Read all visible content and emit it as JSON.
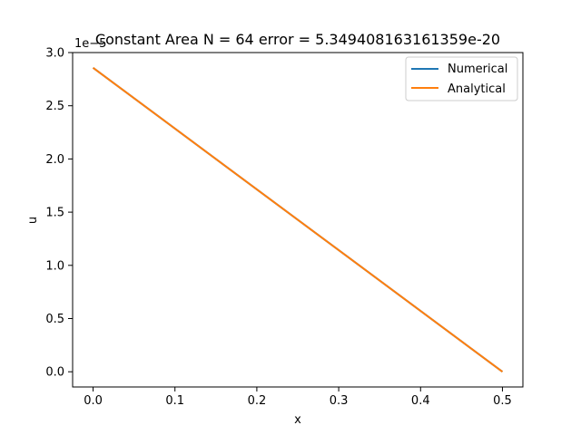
{
  "chart_data": {
    "type": "line",
    "title": "Constant Area N = 64 error = 5.349408163161359e-20",
    "xlabel": "x",
    "ylabel": "u",
    "y_offset_label": "1e−5",
    "xlim": [
      -0.025,
      0.525
    ],
    "ylim": [
      -0.143,
      3.0
    ],
    "x_ticks": [
      0.0,
      0.1,
      0.2,
      0.3,
      0.4,
      0.5
    ],
    "x_tick_labels": [
      "0.0",
      "0.1",
      "0.2",
      "0.3",
      "0.4",
      "0.5"
    ],
    "y_ticks": [
      0.0,
      0.5,
      1.0,
      1.5,
      2.0,
      2.5,
      3.0
    ],
    "y_tick_labels": [
      "0.0",
      "0.5",
      "1.0",
      "1.5",
      "2.0",
      "2.5",
      "3.0"
    ],
    "grid": false,
    "legend_position": "top-right",
    "series": [
      {
        "name": "Numerical",
        "color": "#1f77b4",
        "x": [
          0.0,
          0.5
        ],
        "y": [
          2.857,
          0.0
        ]
      },
      {
        "name": "Analytical",
        "color": "#ff7f0e",
        "x": [
          0.0,
          0.5
        ],
        "y": [
          2.857,
          0.0
        ]
      }
    ]
  }
}
